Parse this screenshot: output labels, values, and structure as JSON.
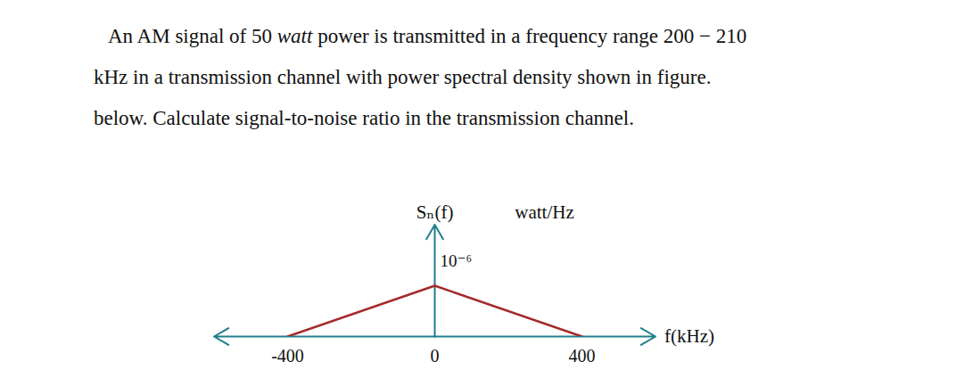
{
  "problem": {
    "lines": [
      [
        {
          "text": "An AM signal of 50 "
        },
        {
          "text": "watt",
          "style": "italic"
        },
        {
          "text": " power is transmitted in a frequency range 200 − 210"
        }
      ],
      [
        {
          "text": "kHz in a transmission channel with power spectral density shown in figure."
        }
      ],
      [
        {
          "text": "below. Calculate signal-to-noise ratio in the transmission channel."
        }
      ]
    ]
  },
  "chart_data": {
    "type": "line",
    "ylabel": "Sₙ(f)",
    "xlabel": "f(kHz)",
    "annotations": [
      "watt/Hz"
    ],
    "x": [
      -400,
      0,
      400
    ],
    "values": [
      0,
      1e-06,
      0
    ],
    "color": "#a52a2a",
    "xlim": [
      -600,
      600
    ],
    "xticks": [
      -400,
      0,
      400
    ],
    "ylim": [
      0,
      2.2e-06
    ],
    "yticks": [
      {
        "value": 1e-06,
        "label": "10⁻⁶"
      }
    ],
    "grid": false
  }
}
